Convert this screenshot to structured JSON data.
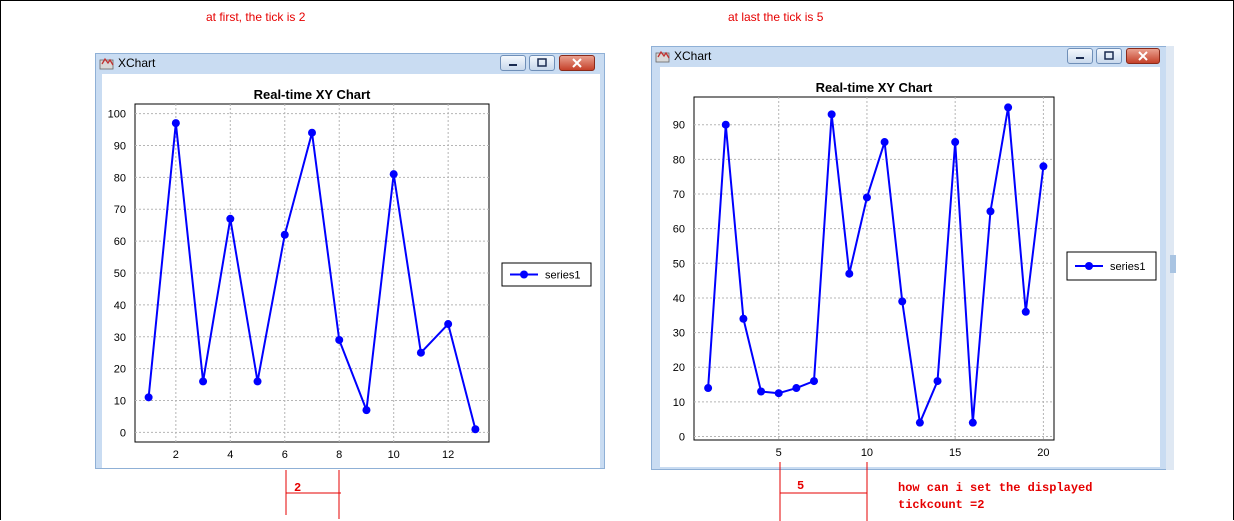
{
  "annotations": {
    "left_note": "at first, the tick is 2",
    "right_note": "at last the tick is 5",
    "left_tick_label": "2",
    "right_tick_label": "5",
    "question_line1": "how can i set the displayed",
    "question_line2": "tickcount =2",
    "annotation_color": "#e60000"
  },
  "windows": [
    {
      "title": "XChart",
      "icon": "java-app-icon",
      "controls": [
        "minimize",
        "maximize",
        "close"
      ]
    },
    {
      "title": "XChart",
      "icon": "java-app-icon",
      "controls": [
        "minimize",
        "maximize",
        "close"
      ]
    }
  ],
  "chart_data": [
    {
      "type": "line",
      "title": "Real-time XY Chart",
      "xlabel": "",
      "ylabel": "",
      "x": [
        1,
        2,
        3,
        4,
        5,
        6,
        7,
        8,
        9,
        10,
        11,
        12,
        13
      ],
      "series": [
        {
          "name": "series1",
          "color": "#0000ff",
          "marker": "circle",
          "values": [
            11,
            97,
            16,
            67,
            16,
            62,
            94,
            29,
            7,
            81,
            25,
            34,
            1
          ]
        }
      ],
      "xlim": [
        0.5,
        13.5
      ],
      "ylim": [
        -3,
        103
      ],
      "xticks": [
        2,
        4,
        6,
        8,
        10,
        12
      ],
      "yticks": [
        0,
        10,
        20,
        30,
        40,
        50,
        60,
        70,
        80,
        90,
        100
      ],
      "grid": true,
      "legend": "right"
    },
    {
      "type": "line",
      "title": "Real-time XY Chart",
      "xlabel": "",
      "ylabel": "",
      "x": [
        1,
        2,
        3,
        4,
        5,
        6,
        7,
        8,
        9,
        10,
        11,
        12,
        13,
        14,
        15,
        16,
        17,
        18,
        19,
        20
      ],
      "series": [
        {
          "name": "series1",
          "color": "#0000ff",
          "marker": "circle",
          "values": [
            14,
            90,
            34,
            13,
            12.5,
            14,
            16,
            93,
            47,
            69,
            85,
            39,
            4,
            16,
            85,
            4,
            65,
            95,
            36,
            78
          ]
        }
      ],
      "xlim": [
        0.2,
        20.6
      ],
      "ylim": [
        -1,
        98
      ],
      "xticks": [
        5,
        10,
        15,
        20
      ],
      "yticks": [
        0,
        10,
        20,
        30,
        40,
        50,
        60,
        70,
        80,
        90
      ],
      "grid": true,
      "legend": "right"
    }
  ]
}
